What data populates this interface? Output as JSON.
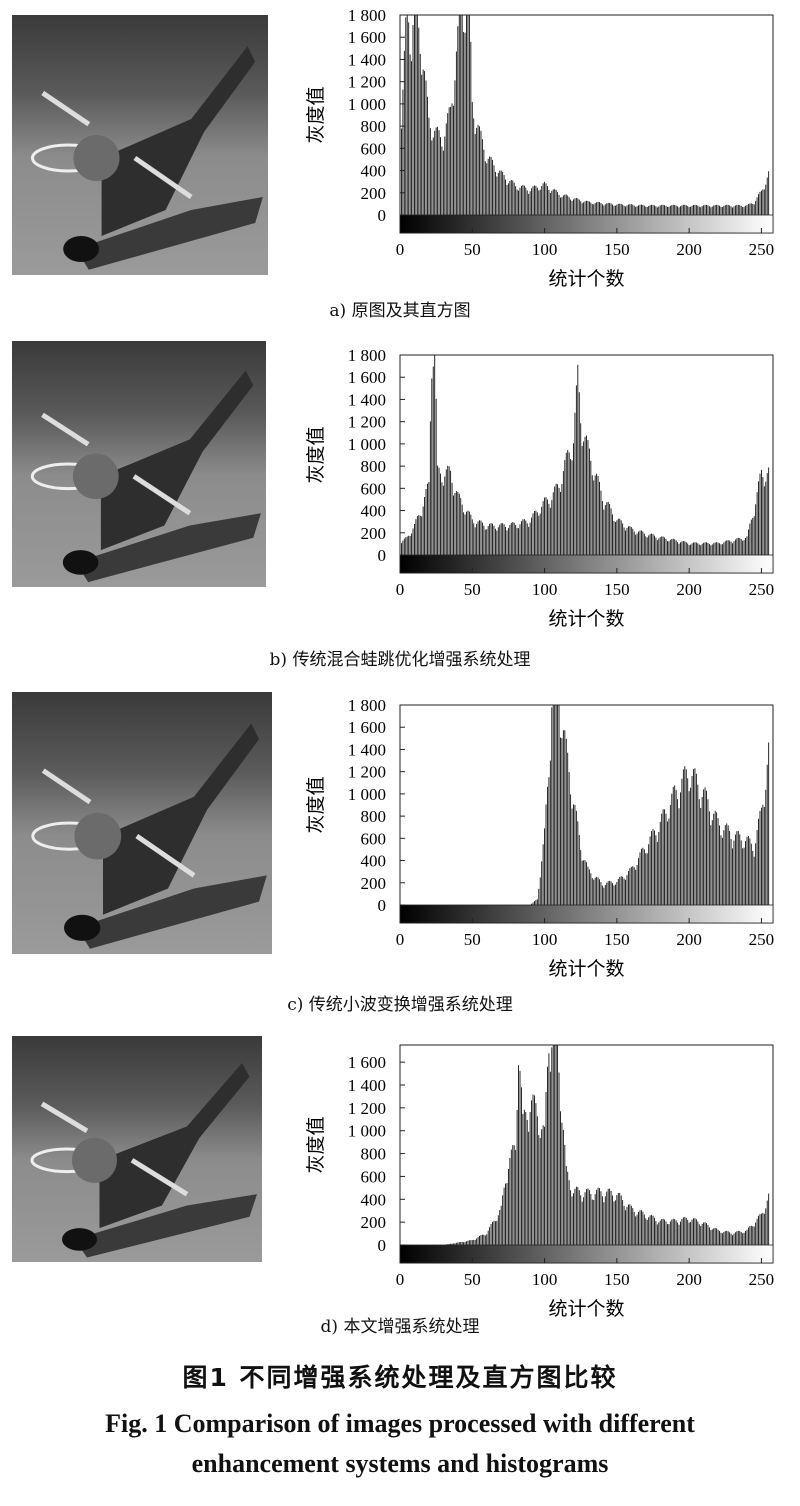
{
  "panels": [
    {
      "id": "a",
      "caption": "a) 原图及其直方图",
      "y_axis_label": "灰度值",
      "x_axis_label": "统计个数",
      "y_ticks": [
        "0",
        "200",
        "400",
        "600",
        "800",
        "1 000",
        "1 200",
        "1 400",
        "1 600",
        "1 800"
      ],
      "x_ticks": [
        "0",
        "50",
        "100",
        "150",
        "200",
        "250"
      ]
    },
    {
      "id": "b",
      "caption": "b) 传统混合蛙跳优化增强系统处理",
      "y_axis_label": "灰度值",
      "x_axis_label": "统计个数",
      "y_ticks": [
        "0",
        "200",
        "400",
        "600",
        "800",
        "1 000",
        "1 200",
        "1 400",
        "1 600",
        "1 800"
      ],
      "x_ticks": [
        "0",
        "50",
        "100",
        "150",
        "200",
        "250"
      ]
    },
    {
      "id": "c",
      "caption": "c) 传统小波变换增强系统处理",
      "y_axis_label": "灰度值",
      "x_axis_label": "统计个数",
      "y_ticks": [
        "0",
        "200",
        "400",
        "600",
        "800",
        "1 000",
        "1 200",
        "1 400",
        "1 600",
        "1 800"
      ],
      "x_ticks": [
        "0",
        "50",
        "100",
        "150",
        "200",
        "250"
      ]
    },
    {
      "id": "d",
      "caption": "d) 本文增强系统处理",
      "y_axis_label": "灰度值",
      "x_axis_label": "统计个数",
      "y_ticks": [
        "0",
        "200",
        "400",
        "600",
        "800",
        "1 000",
        "1 200",
        "1 400",
        "1 600"
      ],
      "x_ticks": [
        "0",
        "50",
        "100",
        "150",
        "200",
        "250"
      ]
    }
  ],
  "figure_title_cn": "图1  不同增强系统处理及直方图比较",
  "figure_title_en_line1": "Fig. 1  Comparison of images processed with different",
  "figure_title_en_line2": "enhancement systems and histograms",
  "chart_data": [
    {
      "type": "bar",
      "xlabel": "统计个数",
      "ylabel": "灰度值",
      "xlim": [
        0,
        255
      ],
      "ylim": [
        0,
        1800
      ],
      "x": [
        0,
        5,
        8,
        10,
        15,
        20,
        25,
        30,
        35,
        40,
        43,
        45,
        48,
        50,
        55,
        60,
        70,
        80,
        90,
        100,
        110,
        120,
        130,
        150,
        170,
        200,
        220,
        240,
        245,
        250,
        255
      ],
      "values": [
        550,
        1800,
        1500,
        1800,
        1450,
        800,
        700,
        650,
        900,
        1500,
        1800,
        1800,
        1800,
        950,
        700,
        500,
        350,
        250,
        220,
        260,
        180,
        140,
        110,
        90,
        80,
        80,
        80,
        80,
        110,
        200,
        350
      ]
    },
    {
      "type": "bar",
      "xlabel": "统计个数",
      "ylabel": "灰度值",
      "xlim": [
        0,
        255
      ],
      "ylim": [
        0,
        1800
      ],
      "x": [
        0,
        5,
        10,
        15,
        20,
        22,
        24,
        26,
        30,
        35,
        40,
        50,
        60,
        70,
        80,
        90,
        100,
        105,
        110,
        115,
        120,
        123,
        125,
        128,
        130,
        135,
        140,
        150,
        160,
        170,
        180,
        200,
        220,
        240,
        245,
        250
      ],
      "values": [
        100,
        150,
        250,
        400,
        600,
        1800,
        1800,
        700,
        700,
        700,
        500,
        300,
        250,
        250,
        260,
        300,
        450,
        500,
        600,
        800,
        1000,
        1500,
        1200,
        1000,
        900,
        700,
        500,
        300,
        220,
        180,
        150,
        100,
        100,
        150,
        400,
        700
      ]
    },
    {
      "type": "bar",
      "xlabel": "统计个数",
      "ylabel": "灰度值",
      "xlim": [
        0,
        255
      ],
      "ylim": [
        0,
        1800
      ],
      "x": [
        0,
        50,
        90,
        95,
        100,
        103,
        105,
        108,
        110,
        113,
        115,
        120,
        125,
        130,
        140,
        150,
        160,
        170,
        180,
        190,
        195,
        200,
        205,
        210,
        220,
        230,
        240,
        245,
        250,
        255
      ],
      "values": [
        0,
        0,
        0,
        50,
        600,
        1200,
        1800,
        1800,
        1800,
        1500,
        1300,
        900,
        500,
        300,
        180,
        200,
        300,
        500,
        700,
        950,
        1050,
        1150,
        1050,
        950,
        700,
        600,
        550,
        500,
        800,
        1300
      ]
    },
    {
      "type": "bar",
      "xlabel": "统计个数",
      "ylabel": "灰度值",
      "xlim": [
        0,
        255
      ],
      "ylim": [
        0,
        1750
      ],
      "x": [
        0,
        30,
        40,
        50,
        60,
        70,
        75,
        80,
        82,
        85,
        90,
        95,
        100,
        103,
        105,
        108,
        110,
        115,
        120,
        130,
        140,
        150,
        160,
        170,
        180,
        190,
        200,
        210,
        220,
        230,
        240,
        250,
        255
      ],
      "values": [
        0,
        0,
        20,
        40,
        100,
        300,
        700,
        800,
        1750,
        1000,
        1200,
        1100,
        900,
        1750,
        1750,
        1750,
        1500,
        600,
        450,
        430,
        440,
        420,
        300,
        250,
        200,
        200,
        220,
        180,
        120,
        100,
        120,
        250,
        400
      ]
    }
  ]
}
